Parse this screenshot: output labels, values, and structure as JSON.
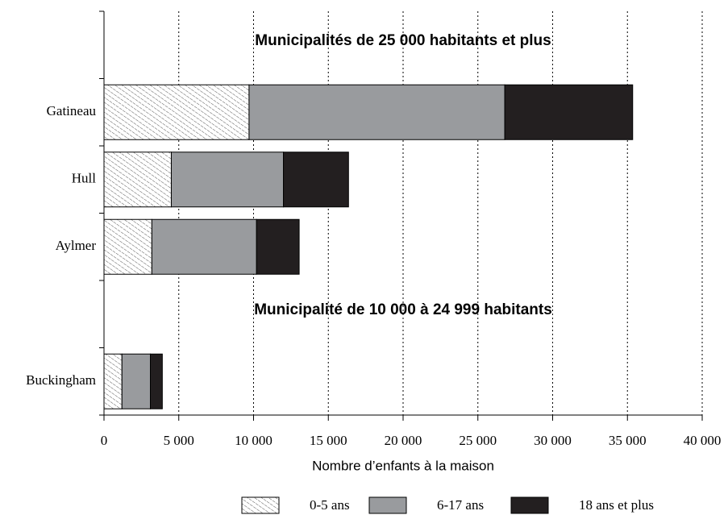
{
  "chart_data": {
    "type": "stacked_barh",
    "x_label": "Nombre d’enfants à la maison",
    "categories": [
      null,
      "Gatineau",
      "Hull",
      "Aylmer",
      null,
      "Buckingham"
    ],
    "annotations": [
      "Municipalités de 25 000 habitants et plus",
      "Municipalité de 10 000 à 24 999 habitants"
    ],
    "series": [
      {
        "name": "0-5 ans",
        "color": "#ffffff",
        "pattern": "hatch",
        "values": [
          null,
          9700,
          4500,
          3200,
          null,
          1200
        ]
      },
      {
        "name": "6-17 ans",
        "color": "#999b9e",
        "values": [
          null,
          17100,
          7500,
          7000,
          null,
          1900
        ]
      },
      {
        "name": "18 ans et plus",
        "color": "#231f20",
        "values": [
          null,
          8550,
          4350,
          2850,
          null,
          800
        ]
      }
    ],
    "xlim": [
      0,
      40000
    ],
    "xticks": [
      0,
      {
        "value": 5000,
        "label": "5 000"
      },
      {
        "value": 10000,
        "label": "10 000"
      },
      {
        "value": 15000,
        "label": "15 000"
      },
      {
        "value": 20000,
        "label": "20 000"
      },
      {
        "value": 25000,
        "label": "25 000"
      },
      {
        "value": 30000,
        "label": "30 000"
      },
      {
        "value": 35000,
        "label": "35 000"
      },
      {
        "value": 40000,
        "label": "40 000"
      }
    ],
    "grid": true,
    "legend": "bottom"
  }
}
